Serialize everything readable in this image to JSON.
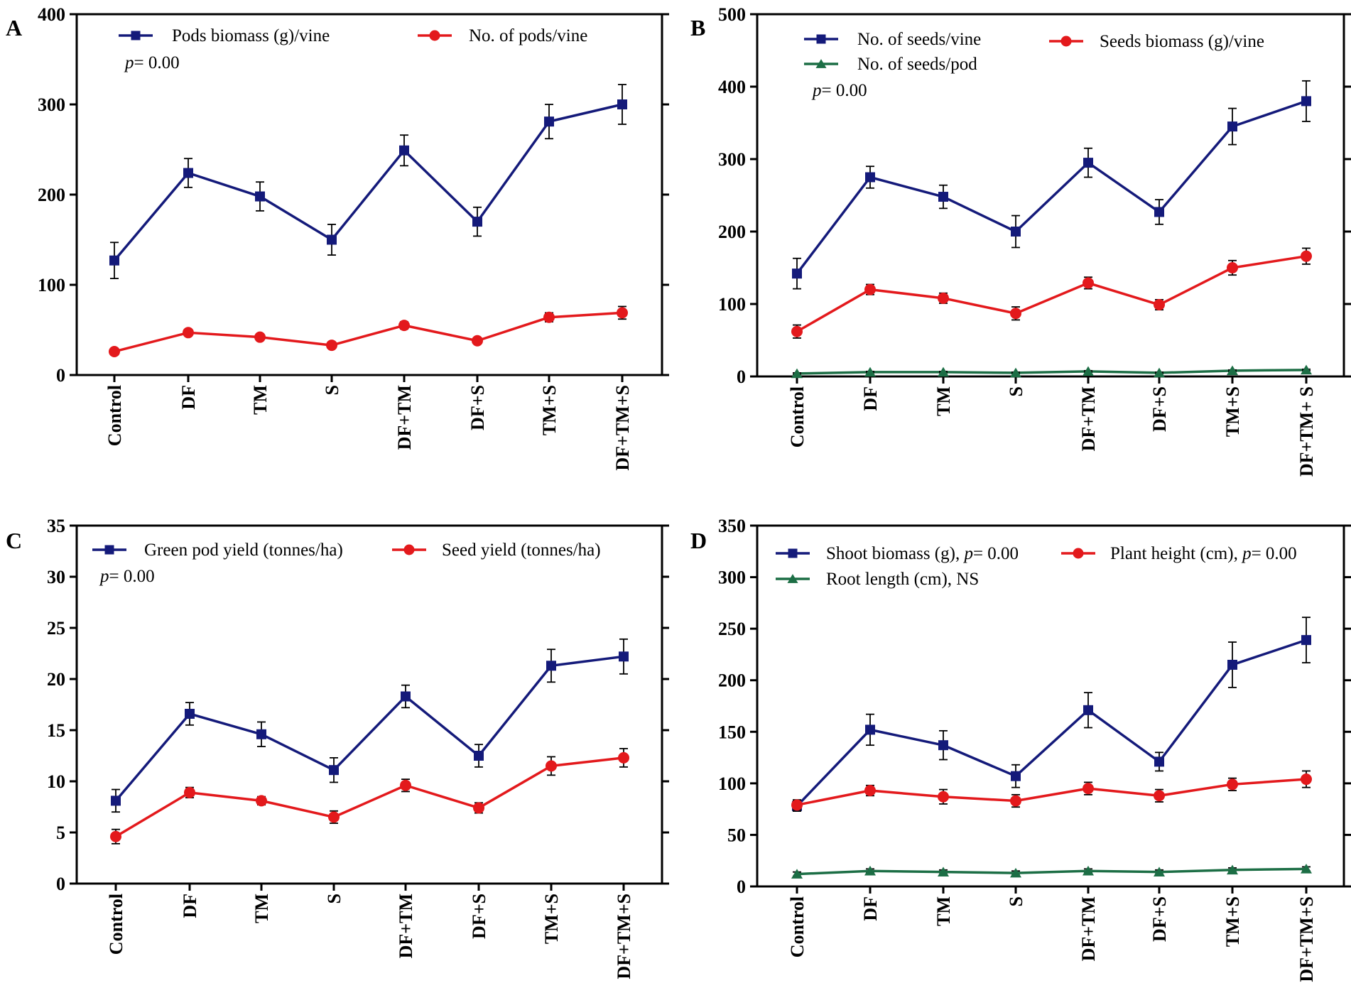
{
  "colors": {
    "blue": "#141a7a",
    "red": "#e3191c",
    "green": "#1c6e45",
    "axis": "#000000"
  },
  "chart_data": [
    {
      "panel": "A",
      "type": "line",
      "categories": [
        "Control",
        "DF",
        "TM",
        "S",
        "DF+TM",
        "DF+S",
        "TM+S",
        "DF+TM+S"
      ],
      "ylim": [
        0,
        400
      ],
      "yticks": [
        0,
        100,
        200,
        300,
        400
      ],
      "yticklabels": [
        "0",
        "100",
        "200",
        "300",
        "400"
      ],
      "p_text": {
        "italic": "p",
        "rest": "= 0.00"
      },
      "series": [
        {
          "name": "Pods biomass (g)/vine",
          "color": "blue",
          "marker": "square",
          "values": [
            127,
            224,
            198,
            150,
            249,
            170,
            281,
            300
          ],
          "errors": [
            20,
            16,
            16,
            17,
            17,
            16,
            19,
            22
          ]
        },
        {
          "name": "No. of pods/vine",
          "color": "red",
          "marker": "circle",
          "values": [
            26,
            47,
            42,
            33,
            55,
            38,
            64,
            69
          ],
          "errors": [
            3,
            3,
            3,
            3,
            4,
            3,
            5,
            7
          ]
        }
      ]
    },
    {
      "panel": "B",
      "type": "line",
      "categories": [
        "Control",
        "DF",
        "TM",
        "S",
        "DF+TM",
        "DF+S",
        "TM+S",
        "DF+TM+ S"
      ],
      "ylim": [
        0,
        500
      ],
      "yticks": [
        0,
        100,
        200,
        300,
        400,
        500
      ],
      "yticklabels": [
        "0",
        "100",
        "200",
        "300",
        "400",
        "500"
      ],
      "p_text": {
        "italic": "p",
        "rest": "= 0.00"
      },
      "series": [
        {
          "name": "No. of seeds/vine",
          "color": "blue",
          "marker": "square",
          "values": [
            142,
            275,
            248,
            200,
            295,
            227,
            345,
            380
          ],
          "errors": [
            21,
            15,
            16,
            22,
            20,
            17,
            25,
            28
          ]
        },
        {
          "name": "Seeds biomass (g)/vine",
          "color": "red",
          "marker": "circle",
          "values": [
            62,
            120,
            108,
            87,
            129,
            99,
            150,
            166
          ],
          "errors": [
            9,
            7,
            7,
            9,
            8,
            7,
            10,
            11
          ]
        },
        {
          "name": "No. of seeds/pod",
          "color": "green",
          "marker": "triangle",
          "values": [
            4,
            6,
            6,
            5,
            7,
            5,
            8,
            9
          ],
          "errors": [
            1,
            1,
            1,
            1,
            1,
            1,
            1,
            1
          ]
        }
      ]
    },
    {
      "panel": "C",
      "type": "line",
      "categories": [
        "Control",
        "DF",
        "TM",
        "S",
        "DF+TM",
        "DF+S",
        "TM+S",
        "DF+TM+S"
      ],
      "ylim": [
        0,
        35
      ],
      "yticks": [
        0,
        5,
        10,
        15,
        20,
        25,
        30,
        35
      ],
      "yticklabels": [
        "0",
        "5",
        "10",
        "15",
        "20",
        "25",
        "30",
        "35"
      ],
      "p_text": {
        "italic": "p",
        "rest": "= 0.00"
      },
      "series": [
        {
          "name": "Green pod yield (tonnes/ha)",
          "color": "blue",
          "marker": "square",
          "values": [
            8.1,
            16.6,
            14.6,
            11.1,
            18.3,
            12.5,
            21.3,
            22.2
          ],
          "errors": [
            1.1,
            1.1,
            1.2,
            1.2,
            1.1,
            1.1,
            1.6,
            1.7
          ]
        },
        {
          "name": "Seed yield (tonnes/ha)",
          "color": "red",
          "marker": "circle",
          "values": [
            4.6,
            8.9,
            8.1,
            6.5,
            9.6,
            7.4,
            11.5,
            12.3
          ],
          "errors": [
            0.7,
            0.5,
            0.4,
            0.6,
            0.6,
            0.5,
            0.9,
            0.9
          ]
        }
      ]
    },
    {
      "panel": "D",
      "type": "line",
      "categories": [
        "Control",
        "DF",
        "TM",
        "S",
        "DF+TM",
        "DF+S",
        "TM+S",
        "DF+TM+S"
      ],
      "ylim": [
        0,
        350
      ],
      "yticks": [
        0,
        50,
        100,
        150,
        200,
        250,
        300,
        350
      ],
      "yticklabels": [
        "0",
        "50",
        "100",
        "150",
        "200",
        "250",
        "300",
        "350"
      ],
      "series": [
        {
          "name": "Shoot biomass (g), ",
          "p_italic": "p",
          "p_rest": "= 0.00",
          "color": "blue",
          "marker": "square",
          "values": [
            78,
            152,
            137,
            107,
            171,
            121,
            215,
            239
          ],
          "errors": [
            5,
            15,
            14,
            11,
            17,
            9,
            22,
            22
          ]
        },
        {
          "name": "Plant height (cm), ",
          "p_italic": "p",
          "p_rest": "= 0.00",
          "color": "red",
          "marker": "circle",
          "values": [
            79,
            93,
            87,
            83,
            95,
            88,
            99,
            104
          ],
          "errors": [
            5,
            5,
            7,
            6,
            6,
            6,
            6,
            8
          ]
        },
        {
          "name": "Root length (cm), NS",
          "color": "green",
          "marker": "triangle",
          "values": [
            12,
            15,
            14,
            13,
            15,
            14,
            16,
            17
          ],
          "errors": [
            2,
            2,
            2,
            2,
            2,
            2,
            2,
            2
          ]
        }
      ]
    }
  ]
}
